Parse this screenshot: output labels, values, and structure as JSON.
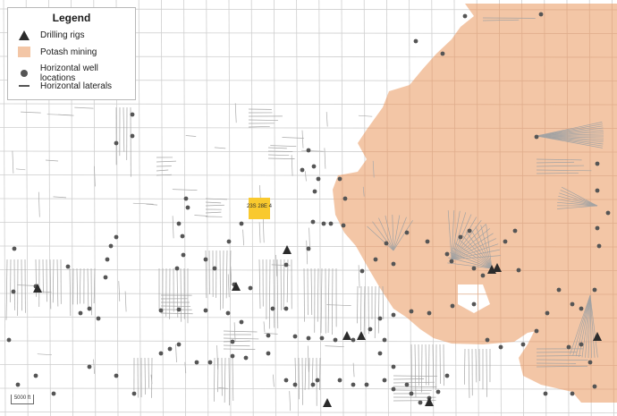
{
  "legend": {
    "title": "Legend",
    "items": [
      {
        "label": "Drilling rigs",
        "symbol": "triangle",
        "color": "#2b2b2b"
      },
      {
        "label": "Potash mining",
        "symbol": "square",
        "color": "#f3c6a6"
      },
      {
        "label": "Horizontal well locations",
        "symbol": "dot",
        "color": "#555555"
      },
      {
        "label": "Horizontal laterals",
        "symbol": "line",
        "color": "#555555"
      }
    ]
  },
  "highlighted_tract": {
    "label": "23S 28E 4",
    "color": "#f9c92e"
  },
  "scale_bar": {
    "label": "5000 ft"
  },
  "colors": {
    "grid": "#c9c9c9",
    "potash": "#f3c6a6",
    "well": "#555555",
    "lateral": "#9a9a9a"
  }
}
